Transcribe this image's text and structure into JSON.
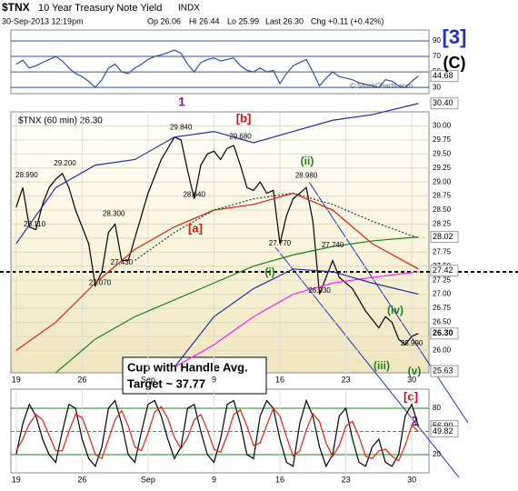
{
  "header": {
    "symbol": "$TNX",
    "name": "10 Year Treasury Note Yield",
    "exchange": "INDX",
    "date": "30-Sep-2013 12:19pm",
    "op": "Op 26.06",
    "hi": "Hi 26.44",
    "lo": "Lo 25.99",
    "last": "Last 26.30",
    "chg": "Chg +0.11 (+0.42%)",
    "copyright": "© StockCharts.com"
  },
  "chart_data": [
    {
      "type": "line",
      "panel": "rsi",
      "ylim": [
        22,
        104
      ],
      "yticks": [
        30,
        50,
        70,
        90
      ],
      "color": "#3050a0",
      "x": [
        0,
        1,
        2,
        3,
        4,
        5,
        6,
        7,
        8,
        9,
        10,
        11,
        12,
        13,
        14,
        15,
        16,
        17,
        18,
        19,
        20,
        21,
        22,
        23,
        24,
        25,
        26,
        27,
        28,
        29,
        30,
        31,
        32,
        33,
        34,
        35,
        36,
        37,
        38,
        39,
        40,
        41,
        42,
        43,
        44,
        45,
        46,
        47,
        48,
        49,
        50,
        51,
        52,
        53,
        54,
        55,
        56,
        57,
        58,
        59,
        60,
        61
      ],
      "xlim": [
        -0.8,
        62.6
      ],
      "values": [
        60,
        65,
        55,
        58,
        62,
        66,
        70,
        64,
        55,
        48,
        44,
        38,
        30,
        40,
        55,
        60,
        50,
        48,
        55,
        60,
        66,
        70,
        72,
        75,
        78,
        74,
        60,
        50,
        62,
        66,
        68,
        64,
        66,
        68,
        58,
        52,
        50,
        55,
        50,
        52,
        35,
        48,
        58,
        62,
        66,
        50,
        32,
        42,
        50,
        44,
        42,
        40,
        36,
        34,
        32,
        30,
        40,
        38,
        32,
        30,
        38,
        44.68
      ],
      "tags": [
        {
          "value": 44.68,
          "label": "44.68"
        }
      ]
    },
    {
      "type": "line",
      "panel": "price",
      "legend": "$TNX (60 min) 26.30",
      "ylim": [
        25.6,
        30.25
      ],
      "xlim": [
        -0.8,
        62.6
      ],
      "yticks": [
        {
          "value": 26,
          "label": "26.00"
        },
        {
          "value": 26.25,
          "label": "26.25"
        },
        {
          "value": 26.5,
          "label": "26.50"
        },
        {
          "value": 26.75,
          "label": "26.75"
        },
        {
          "value": 27,
          "label": "27.00"
        },
        {
          "value": 27.25,
          "label": "27.25"
        },
        {
          "value": 27.5,
          "label": "27.50"
        },
        {
          "value": 27.75,
          "label": "27.75"
        },
        {
          "value": 28,
          "label": "28.00"
        },
        {
          "value": 28.25,
          "label": "28.25"
        },
        {
          "value": 28.5,
          "label": "28.50"
        },
        {
          "value": 28.75,
          "label": "28.75"
        },
        {
          "value": 29,
          "label": "29.00"
        },
        {
          "value": 29.25,
          "label": "29.25"
        },
        {
          "value": 29.5,
          "label": "29.50"
        },
        {
          "value": 29.75,
          "label": "29.75"
        },
        {
          "value": 30,
          "label": "30.00"
        }
      ],
      "xticks": [
        {
          "value": 0,
          "label": "19"
        },
        {
          "value": 10,
          "label": "26"
        },
        {
          "value": 20,
          "label": "Sep"
        },
        {
          "value": 30,
          "label": "9"
        },
        {
          "value": 40,
          "label": "16"
        },
        {
          "value": 50,
          "label": "23"
        },
        {
          "value": 60,
          "label": "30"
        }
      ],
      "grid": true,
      "series": [
        {
          "name": "$TNX",
          "color": "#000000",
          "x": [
            0,
            1,
            2,
            3,
            4,
            5,
            6,
            7,
            8,
            9,
            10,
            11,
            12,
            13,
            14,
            15,
            16,
            17,
            18,
            19,
            20,
            21,
            22,
            23,
            24,
            25,
            26,
            27,
            28,
            29,
            30,
            31,
            32,
            33,
            34,
            35,
            36,
            37,
            38,
            39,
            40,
            41,
            42,
            43,
            44,
            45,
            46,
            47,
            48,
            49,
            50,
            51,
            52,
            53,
            54,
            55,
            56,
            57,
            58,
            59,
            60,
            61
          ],
          "values": [
            28.55,
            28.9,
            28.2,
            28.15,
            28.6,
            28.9,
            29.05,
            29.15,
            28.9,
            28.5,
            28.2,
            27.9,
            27.15,
            27.4,
            28.1,
            28.25,
            27.6,
            27.6,
            28.0,
            28.4,
            28.8,
            29.1,
            29.4,
            29.6,
            29.8,
            29.75,
            29.2,
            28.7,
            29.3,
            29.5,
            29.55,
            29.4,
            29.6,
            29.65,
            29.3,
            28.9,
            28.85,
            29.0,
            28.8,
            28.85,
            27.9,
            28.4,
            28.7,
            28.8,
            28.9,
            28.3,
            27.0,
            27.3,
            27.6,
            27.3,
            27.2,
            27.1,
            26.9,
            26.7,
            26.55,
            26.4,
            26.6,
            26.5,
            26.2,
            26.1,
            26.25,
            26.3
          ]
        },
        {
          "color": "#e02010",
          "x": [
            0,
            6,
            12,
            18,
            24,
            30,
            36,
            42,
            48,
            54,
            61
          ],
          "values": [
            26.0,
            26.5,
            27.2,
            27.8,
            28.2,
            28.5,
            28.6,
            28.8,
            28.5,
            27.9,
            27.45
          ]
        },
        {
          "color": "#333333",
          "dash": true,
          "x": [
            0,
            6,
            12,
            18,
            24,
            30,
            36,
            42,
            48,
            54,
            61
          ],
          "values": [
            null,
            null,
            null,
            27.6,
            28.1,
            28.5,
            28.7,
            28.8,
            28.6,
            28.3,
            28.0
          ]
        },
        {
          "color": "#208020",
          "x": [
            0,
            6,
            12,
            18,
            24,
            30,
            36,
            42,
            48,
            54,
            61
          ],
          "values": [
            null,
            25.6,
            26.2,
            26.6,
            26.9,
            27.2,
            27.5,
            27.7,
            27.85,
            27.95,
            28.02
          ]
        },
        {
          "color": "#ff20ff",
          "x": [
            0,
            6,
            12,
            18,
            24,
            30,
            36,
            42,
            48,
            54,
            61
          ],
          "values": [
            null,
            null,
            null,
            null,
            25.7,
            26.1,
            26.6,
            27.0,
            27.2,
            27.3,
            27.4
          ]
        },
        {
          "color": "#2030a0",
          "x": [
            0,
            6,
            12,
            18,
            24,
            30,
            36,
            42,
            48,
            54,
            61
          ],
          "values": [
            27.9,
            28.9,
            29.3,
            29.4,
            29.8,
            29.9,
            29.7,
            29.9,
            30.1,
            30.2,
            30.4
          ]
        },
        {
          "color": "#2030a0",
          "x": [
            0,
            6,
            12,
            18,
            24,
            30,
            36,
            42,
            48,
            54,
            61
          ],
          "values": [
            null,
            null,
            null,
            null,
            25.7,
            26.6,
            27.1,
            27.45,
            27.4,
            27.2,
            27.0
          ]
        }
      ],
      "price_labels": [
        {
          "x": 1.6,
          "value": 28.99,
          "label": "28.990"
        },
        {
          "x": 7.4,
          "value": 29.2,
          "label": "29.200"
        },
        {
          "x": 2.8,
          "value": 28.11,
          "label": "28.110"
        },
        {
          "x": 14.8,
          "value": 28.3,
          "label": "28.300"
        },
        {
          "x": 16,
          "value": 27.43,
          "label": "27.430"
        },
        {
          "x": 12.7,
          "value": 27.07,
          "label": "27.070"
        },
        {
          "x": 25,
          "value": 29.84,
          "label": "29.840"
        },
        {
          "x": 27,
          "value": 28.64,
          "label": "28.640"
        },
        {
          "x": 34,
          "value": 29.68,
          "label": "29.680"
        },
        {
          "x": 44,
          "value": 28.98,
          "label": "28.980"
        },
        {
          "x": 40,
          "value": 27.77,
          "label": "27.770"
        },
        {
          "x": 46,
          "value": 26.93,
          "label": "26.930"
        },
        {
          "x": 48,
          "value": 27.74,
          "label": "27.740"
        },
        {
          "x": 60,
          "value": 25.99,
          "label": "25.990"
        }
      ],
      "tags": [
        {
          "value": 30.4,
          "label": "30.40"
        },
        {
          "value": 28.02,
          "label": "28.02"
        },
        {
          "value": 27.42,
          "label": "27.42"
        },
        {
          "value": 26.3,
          "label": "26.30"
        },
        {
          "value": 25.63,
          "label": "25.63"
        }
      ],
      "annotations": [
        {
          "text": "1",
          "color": "#8020a0"
        },
        {
          "text": "[b]",
          "color": "#d01010"
        },
        {
          "text": "[a]",
          "color": "#d01010"
        },
        {
          "text": "(ii)",
          "color": "#208020"
        },
        {
          "text": "(i)",
          "color": "#208020"
        },
        {
          "text": "(iii)",
          "color": "#208020"
        },
        {
          "text": "(iv)",
          "color": "#208020"
        },
        {
          "text": "(v)",
          "color": "#208020"
        },
        {
          "text": "[c]",
          "color": "#d01010"
        },
        {
          "text": "2",
          "color": "#8020a0"
        },
        {
          "text": "[3]",
          "color": "#2030c0"
        },
        {
          "text": "(C)",
          "color": "#000000"
        }
      ],
      "box": [
        "Cup with Handle Avg.",
        "Target ~ 37.77"
      ]
    },
    {
      "type": "line",
      "panel": "stoch",
      "ylim": [
        -3.5,
        104.7
      ],
      "yticks": [
        20,
        80
      ],
      "xlim": [
        -0.8,
        62.6
      ],
      "xticks": [
        {
          "value": 0,
          "label": "19"
        },
        {
          "value": 10,
          "label": "26"
        },
        {
          "value": 20,
          "label": "Sep"
        },
        {
          "value": 30,
          "label": "9"
        },
        {
          "value": 40,
          "label": "16"
        },
        {
          "value": 50,
          "label": "23"
        },
        {
          "value": 60,
          "label": "30"
        }
      ],
      "x": [
        0,
        1,
        2,
        3,
        4,
        5,
        6,
        7,
        8,
        9,
        10,
        11,
        12,
        13,
        14,
        15,
        16,
        17,
        18,
        19,
        20,
        21,
        22,
        23,
        24,
        25,
        26,
        27,
        28,
        29,
        30,
        31,
        32,
        33,
        34,
        35,
        36,
        37,
        38,
        39,
        40,
        41,
        42,
        43,
        44,
        45,
        46,
        47,
        48,
        49,
        50,
        51,
        52,
        53,
        54,
        55,
        56,
        57,
        58,
        59,
        60,
        61
      ],
      "series": [
        {
          "color": "#000000",
          "values": [
            20,
            60,
            85,
            70,
            40,
            20,
            10,
            50,
            85,
            80,
            40,
            15,
            5,
            30,
            80,
            90,
            60,
            20,
            10,
            50,
            85,
            90,
            70,
            40,
            15,
            30,
            80,
            85,
            50,
            20,
            10,
            40,
            85,
            90,
            60,
            20,
            15,
            70,
            90,
            80,
            40,
            10,
            5,
            60,
            90,
            70,
            30,
            5,
            20,
            70,
            80,
            40,
            10,
            5,
            30,
            40,
            10,
            5,
            20,
            70,
            85,
            56.9
          ]
        },
        {
          "color": "#e02010",
          "values": [
            25,
            40,
            60,
            72,
            65,
            45,
            25,
            25,
            50,
            72,
            68,
            45,
            20,
            15,
            40,
            65,
            77,
            57,
            30,
            25,
            48,
            75,
            82,
            67,
            42,
            28,
            42,
            65,
            72,
            52,
            27,
            23,
            45,
            72,
            78,
            57,
            32,
            35,
            58,
            80,
            70,
            43,
            18,
            25,
            52,
            73,
            63,
            35,
            18,
            32,
            57,
            63,
            43,
            18,
            15,
            25,
            27,
            18,
            12,
            32,
            58,
            49.82
          ]
        }
      ],
      "tags": [
        {
          "value": 56.9,
          "label": "56.90"
        },
        {
          "value": 49.82,
          "label": "49.82"
        }
      ]
    }
  ]
}
